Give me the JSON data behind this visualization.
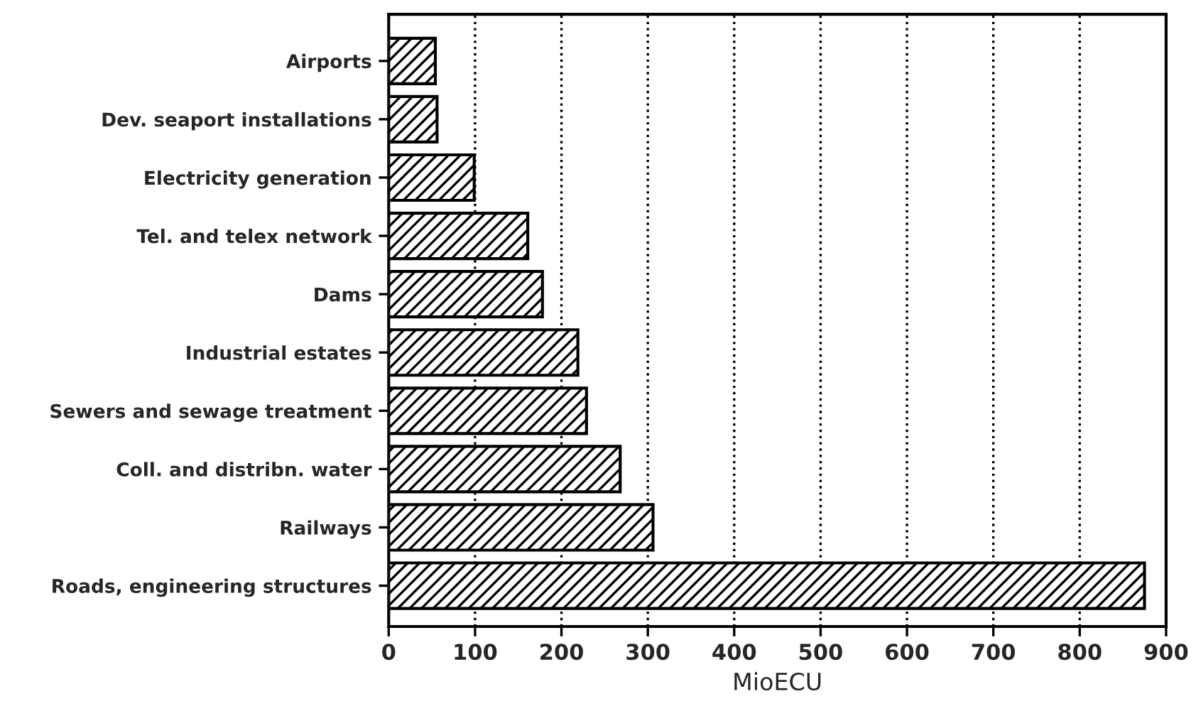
{
  "chart_data": {
    "type": "bar",
    "orientation": "horizontal",
    "xlabel": "MioECU",
    "categories": [
      "Airports",
      "Dev. seaport installations",
      "Electricity generation",
      "Tel. and telex network",
      "Dams",
      "Industrial estates",
      "Sewers and sewage treatment",
      "Coll. and distribn. water",
      "Railways",
      "Roads, engineering structures"
    ],
    "values": [
      54,
      56,
      99,
      161,
      178,
      219,
      229,
      268,
      306,
      875
    ],
    "color": "#000000",
    "xlim": [
      0,
      900
    ],
    "xticks": [
      0,
      100,
      200,
      300,
      400,
      500,
      600,
      700,
      800,
      900
    ],
    "grid": "x"
  }
}
